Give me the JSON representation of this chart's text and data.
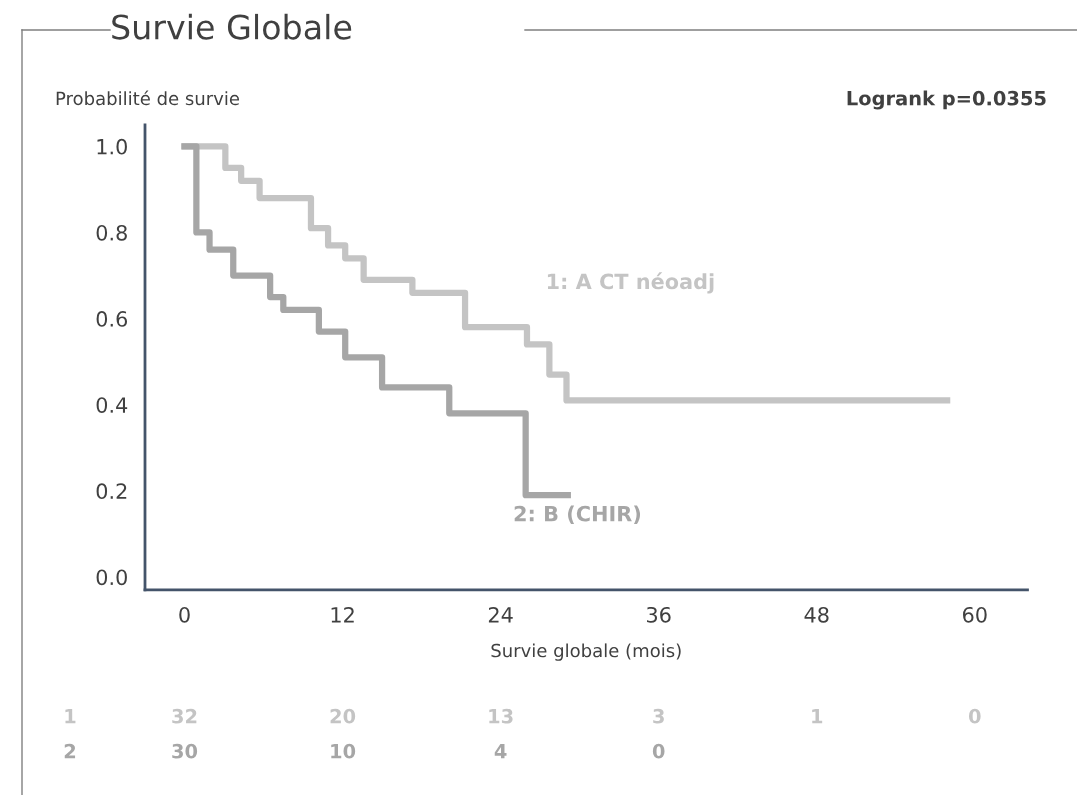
{
  "chart_data": [
    {
      "type": "step",
      "title": "Survie Globale",
      "ylabel": "Probabilité de survie",
      "xlabel": "Survie globale (mois)",
      "annotations": [
        "Logrank p=0.0355"
      ],
      "series": [
        {
          "name": "1: A CT néoadj",
          "color": "#c4c4c4",
          "x": [
            0,
            3.1,
            4.3,
            5.7,
            9.6,
            10.9,
            12.2,
            13.6,
            17.3,
            21.3,
            26.0,
            27.7,
            29.0,
            57.9
          ],
          "values": [
            1.0,
            0.95,
            0.92,
            0.88,
            0.81,
            0.77,
            0.74,
            0.69,
            0.66,
            0.58,
            0.54,
            0.47,
            0.41,
            0.41
          ]
        },
        {
          "name": "2: B (CHIR)",
          "color": "#a6a6a6",
          "x": [
            0,
            0.9,
            1.9,
            3.7,
            6.5,
            7.5,
            10.2,
            12.2,
            15.0,
            20.1,
            25.9,
            29.1
          ],
          "values": [
            1.0,
            0.8,
            0.76,
            0.7,
            0.65,
            0.62,
            0.57,
            0.51,
            0.44,
            0.38,
            0.19,
            0.19
          ]
        }
      ],
      "xlim": [
        -3,
        64
      ],
      "xticks": [
        0,
        12,
        24,
        36,
        48,
        60
      ],
      "ylim": [
        -0.03,
        1.05
      ],
      "yticks": [
        {
          "value": 0,
          "label": "0.0"
        },
        0.2,
        0.4,
        0.6,
        0.8,
        {
          "value": 1,
          "label": "1.0"
        }
      ],
      "grid": false,
      "legend": false
    },
    {
      "type": "heatmap",
      "categories": [
        null,
        null,
        null,
        null,
        null,
        null
      ],
      "y_categories": [
        "1",
        "2"
      ],
      "colors": [
        "#c4c4c4",
        "#a6a6a6"
      ],
      "cells": [
        [
          32,
          20,
          13,
          3,
          1,
          0
        ],
        [
          30,
          10,
          4,
          0,
          null,
          null
        ]
      ],
      "cell_labels": [
        [
          "32",
          "20",
          "13",
          "3",
          "1",
          "0"
        ],
        [
          "30",
          "10",
          "4",
          "0",
          null,
          null
        ]
      ]
    }
  ]
}
